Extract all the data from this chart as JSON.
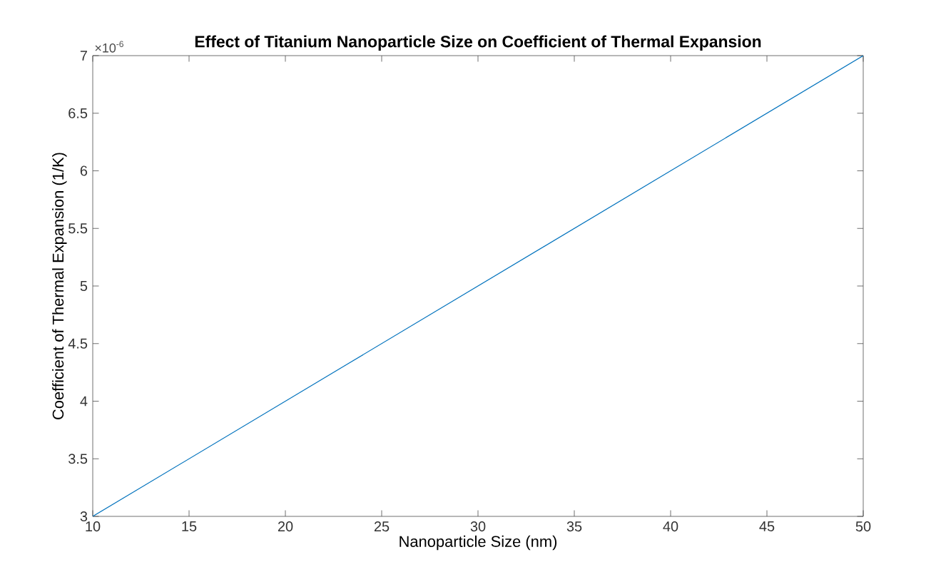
{
  "chart_data": {
    "type": "line",
    "title": "Effect of Titanium Nanoparticle Size on Coefficient of Thermal Expansion",
    "xlabel": "Nanoparticle Size (nm)",
    "ylabel": "Coefficient of Thermal Expansion (1/K)",
    "annotations": [
      "×10$^{-6}$"
    ],
    "x": [
      10,
      50
    ],
    "series": [
      {
        "color": "#0072bd",
        "values": [
          3,
          7
        ]
      }
    ],
    "xlim": [
      10,
      50
    ],
    "ylim": [
      3,
      7
    ],
    "xticks": [
      10,
      15,
      20,
      25,
      30,
      35,
      40,
      45,
      50
    ],
    "yticks": [
      3,
      3.5,
      4,
      4.5,
      5,
      5.5,
      6,
      6.5,
      7
    ],
    "grid": false,
    "marker": "none",
    "line_style": "solid"
  }
}
